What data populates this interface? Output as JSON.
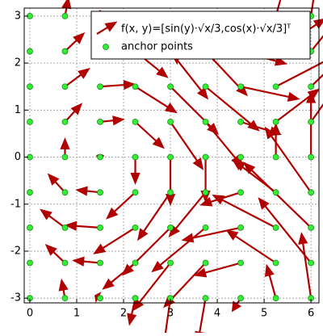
{
  "chart_data": {
    "type": "quiver",
    "x": [
      0,
      0,
      0,
      0,
      0,
      0,
      0,
      0,
      0,
      0.75,
      0.75,
      0.75,
      0.75,
      0.75,
      0.75,
      0.75,
      0.75,
      0.75,
      1.5,
      1.5,
      1.5,
      1.5,
      1.5,
      1.5,
      1.5,
      1.5,
      1.5,
      2.25,
      2.25,
      2.25,
      2.25,
      2.25,
      2.25,
      2.25,
      2.25,
      2.25,
      3,
      3,
      3,
      3,
      3,
      3,
      3,
      3,
      3,
      3.75,
      3.75,
      3.75,
      3.75,
      3.75,
      3.75,
      3.75,
      3.75,
      3.75,
      4.5,
      4.5,
      4.5,
      4.5,
      4.5,
      4.5,
      4.5,
      4.5,
      4.5,
      5.25,
      5.25,
      5.25,
      5.25,
      5.25,
      5.25,
      5.25,
      5.25,
      5.25,
      6,
      6,
      6,
      6,
      6,
      6,
      6,
      6,
      6
    ],
    "y": [
      -3,
      -2.25,
      -1.5,
      -0.75,
      0,
      0.75,
      1.5,
      2.25,
      3,
      -3,
      -2.25,
      -1.5,
      -0.75,
      0,
      0.75,
      1.5,
      2.25,
      3,
      -3,
      -2.25,
      -1.5,
      -0.75,
      0,
      0.75,
      1.5,
      2.25,
      3,
      -3,
      -2.25,
      -1.5,
      -0.75,
      0,
      0.75,
      1.5,
      2.25,
      3,
      -3,
      -2.25,
      -1.5,
      -0.75,
      0,
      0.75,
      1.5,
      2.25,
      3,
      -3,
      -2.25,
      -1.5,
      -0.75,
      0,
      0.75,
      1.5,
      2.25,
      3,
      -3,
      -2.25,
      -1.5,
      -0.75,
      0,
      0.75,
      1.5,
      2.25,
      3,
      -3,
      -2.25,
      -1.5,
      -0.75,
      0,
      0.75,
      1.5,
      2.25,
      3,
      -3,
      -2.25,
      -1.5,
      -0.75,
      0,
      0.75,
      1.5,
      2.25,
      3
    ],
    "series": [
      {
        "name": "f(x, y)=[sin(y)·√x/3,cos(x)·√x/3]ᵀ",
        "color": "#b00000",
        "u": [
          0,
          0,
          0,
          0,
          0,
          0,
          0,
          0,
          0,
          -0.07,
          -0.39,
          -0.5,
          -0.34,
          0,
          0.34,
          0.5,
          0.39,
          0.07,
          -0.1,
          -0.55,
          -0.71,
          -0.48,
          0,
          0.48,
          0.71,
          0.55,
          0.1,
          -0.12,
          -0.67,
          -0.86,
          -0.59,
          0,
          0.59,
          0.86,
          0.67,
          0.12,
          -0.14,
          -0.78,
          -1,
          -0.68,
          0,
          0.68,
          1,
          0.78,
          0.14,
          -0.16,
          -0.87,
          -1.12,
          -0.76,
          0,
          0.76,
          1.12,
          0.87,
          0.16,
          -0.17,
          -0.95,
          -1.22,
          -0.83,
          0,
          0.83,
          1.22,
          0.95,
          0.17,
          -0.19,
          -1.03,
          -1.32,
          -0.9,
          0,
          0.9,
          1.32,
          1.03,
          0.19,
          -0.2,
          -1.1,
          -1.41,
          -0.96,
          0,
          0.96,
          1.41,
          1.1,
          0.2
        ],
        "v": [
          0,
          0,
          0,
          0,
          0,
          0,
          0,
          0,
          0,
          0.37,
          0.37,
          0.37,
          0.37,
          0.37,
          0.37,
          0.37,
          0.37,
          0.37,
          0.05,
          0.05,
          0.05,
          0.05,
          0.05,
          0.05,
          0.05,
          0.05,
          0.05,
          -0.54,
          -0.54,
          -0.54,
          -0.54,
          -0.54,
          -0.54,
          -0.54,
          -0.54,
          -0.54,
          -0.99,
          -0.99,
          -0.99,
          -0.99,
          -0.99,
          -0.99,
          -0.99,
          -0.99,
          -0.99,
          -0.92,
          -0.92,
          -0.92,
          -0.92,
          -0.92,
          -0.92,
          -0.92,
          -0.92,
          -0.92,
          -0.26,
          -0.26,
          -0.26,
          -0.26,
          -0.26,
          -0.26,
          -0.26,
          -0.26,
          -0.26,
          0.68,
          0.68,
          0.68,
          0.68,
          0.68,
          0.68,
          0.68,
          0.68,
          0.68,
          1.36,
          1.36,
          1.36,
          1.36,
          1.36,
          1.36,
          1.36,
          1.36,
          1.36
        ]
      },
      {
        "name": "anchor points",
        "color": "#33ee33"
      }
    ],
    "xlim": [
      -0.12,
      6.17
    ],
    "ylim": [
      -3.1,
      3.17
    ],
    "xticks": [
      0,
      1,
      2,
      3,
      4,
      5,
      6
    ],
    "yticks": [
      -3,
      -2,
      -1,
      0,
      1,
      2,
      3
    ],
    "grid": true
  }
}
